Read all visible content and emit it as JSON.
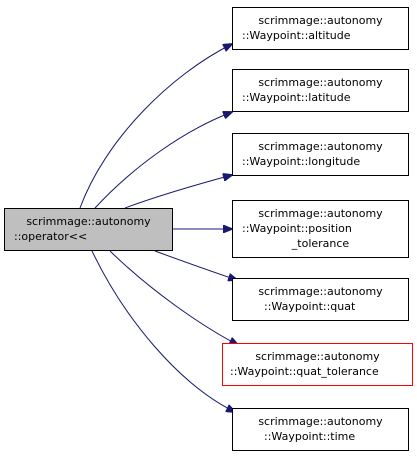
{
  "source_node": {
    "lines": [
      "scrimmage::autonomy",
      "::operator<<"
    ]
  },
  "target_nodes": [
    {
      "lines": [
        "scrimmage::autonomy",
        "::Waypoint::altitude"
      ]
    },
    {
      "lines": [
        "scrimmage::autonomy",
        "::Waypoint::latitude"
      ]
    },
    {
      "lines": [
        "scrimmage::autonomy",
        "::Waypoint::longitude"
      ]
    },
    {
      "lines": [
        "scrimmage::autonomy",
        "::Waypoint::position",
        "_tolerance"
      ]
    },
    {
      "lines": [
        "scrimmage::autonomy",
        "::Waypoint::quat"
      ]
    },
    {
      "lines": [
        "scrimmage::autonomy",
        "::Waypoint::quat_tolerance"
      ],
      "highlighted": true
    },
    {
      "lines": [
        "scrimmage::autonomy",
        "::Waypoint::time"
      ]
    }
  ],
  "colors": {
    "source_fill": "#bfbfbf",
    "node_border": "#000000",
    "highlight_border": "#ff0000",
    "edge": "#191970"
  }
}
